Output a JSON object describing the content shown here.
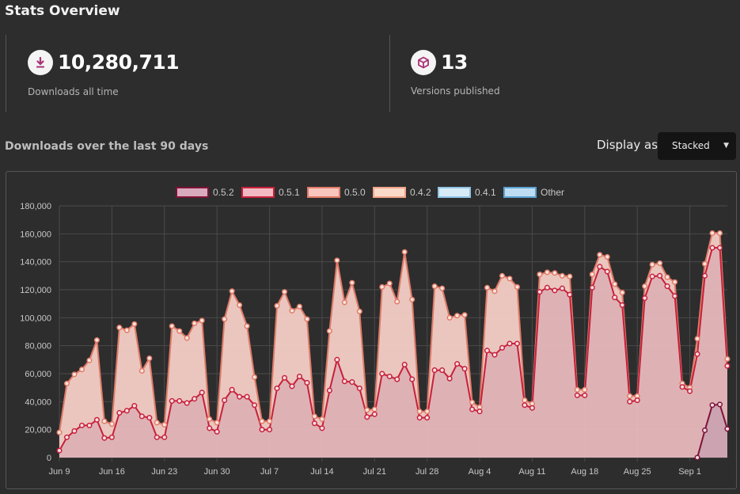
{
  "page": {
    "title": "Stats Overview"
  },
  "stats": [
    {
      "icon": "download-icon",
      "value": "10,280,711",
      "label": "Downloads all time"
    },
    {
      "icon": "package-icon",
      "value": "13",
      "label": "Versions published"
    }
  ],
  "section": {
    "title": "Downloads over the last 90 days",
    "display_label": "Display as",
    "display_value": "Stacked"
  },
  "colors": {
    "accent": "#a83276",
    "fill_050": "#f4cfc6",
    "line_050": "#e07a68",
    "fill_051": "#e8b9bd",
    "line_051": "#c7203b",
    "fill_052": "#d4aab8",
    "line_052": "#7e1237"
  },
  "chart_data": {
    "type": "area",
    "stacked": true,
    "ylim": [
      0,
      180000
    ],
    "yticks": [
      "0",
      "20,000",
      "40,000",
      "60,000",
      "80,000",
      "100,000",
      "120,000",
      "140,000",
      "160,000",
      "180,000"
    ],
    "xtick_labels": [
      "Jun 9",
      "Jun 16",
      "Jun 23",
      "Jun 30",
      "Jul 7",
      "Jul 14",
      "Jul 21",
      "Jul 28",
      "Aug 4",
      "Aug 11",
      "Aug 18",
      "Aug 25",
      "Sep 1"
    ],
    "xtick_index": [
      0,
      7,
      14,
      21,
      28,
      35,
      42,
      49,
      56,
      63,
      70,
      77,
      84
    ],
    "legend_position": "top",
    "legend": [
      "0.5.2",
      "0.5.1",
      "0.5.0",
      "0.4.2",
      "0.4.1",
      "Other"
    ],
    "legend_colors": [
      {
        "fill": "#d9a9bc",
        "stroke": "#7e1237"
      },
      {
        "fill": "#f2b9c2",
        "stroke": "#c7203b"
      },
      {
        "fill": "#f8c6bd",
        "stroke": "#e07a68"
      },
      {
        "fill": "#fbd9c8",
        "stroke": "#f0a489"
      },
      {
        "fill": "#d8ecf8",
        "stroke": "#8fc3e3"
      },
      {
        "fill": "#bddcf2",
        "stroke": "#5aa0cf"
      }
    ],
    "series": [
      {
        "name": "0.5.2",
        "values": [
          0,
          0,
          0,
          0,
          0,
          0,
          0,
          0,
          0,
          0,
          0,
          0,
          0,
          0,
          0,
          0,
          0,
          0,
          0,
          0,
          0,
          0,
          0,
          0,
          0,
          0,
          0,
          0,
          0,
          0,
          0,
          0,
          0,
          0,
          0,
          0,
          0,
          0,
          0,
          0,
          0,
          0,
          0,
          0,
          0,
          0,
          0,
          0,
          0,
          0,
          0,
          0,
          0,
          0,
          0,
          0,
          0,
          0,
          0,
          0,
          0,
          0,
          0,
          0,
          0,
          0,
          0,
          0,
          0,
          0,
          0,
          0,
          0,
          0,
          0,
          0,
          0,
          0,
          0,
          0,
          0,
          0,
          0,
          0,
          0,
          0,
          19500,
          37500,
          38000,
          20500
        ]
      },
      {
        "name": "0.5.1",
        "values": [
          5000,
          14500,
          19000,
          23000,
          23000,
          27000,
          14000,
          14500,
          32000,
          33500,
          37000,
          29500,
          28500,
          14500,
          14500,
          40500,
          40500,
          39000,
          42000,
          46500,
          21000,
          18500,
          41000,
          48500,
          43500,
          43500,
          37500,
          20000,
          20000,
          49500,
          57000,
          51000,
          58000,
          53500,
          24500,
          21000,
          48000,
          70000,
          54500,
          54000,
          49500,
          29000,
          31000,
          60000,
          58000,
          56000,
          66500,
          56000,
          28500,
          28500,
          62500,
          62500,
          56500,
          67000,
          63500,
          34500,
          33000,
          76500,
          73500,
          78500,
          81500,
          81500,
          37500,
          35500,
          118500,
          121500,
          119500,
          121000,
          116500,
          44500,
          44500,
          121500,
          136500,
          133000,
          114500,
          109000,
          40000,
          41000,
          114000,
          129500,
          130000,
          122500,
          115500,
          50500,
          47500,
          74000,
          110500,
          112500,
          112000,
          45000
        ]
      },
      {
        "name": "0.5.0",
        "values": [
          13000,
          38500,
          40500,
          40000,
          46500,
          57000,
          12000,
          9500,
          61000,
          57500,
          58500,
          32500,
          42500,
          10500,
          9000,
          53500,
          50000,
          46500,
          54000,
          51500,
          6500,
          6500,
          58000,
          70500,
          65500,
          50500,
          20000,
          6000,
          6000,
          59000,
          61500,
          54000,
          50000,
          45500,
          5000,
          6500,
          42500,
          71000,
          56500,
          71000,
          55000,
          5000,
          3500,
          62000,
          66500,
          55500,
          80500,
          57000,
          4500,
          4500,
          60000,
          58500,
          43500,
          34500,
          38500,
          5000,
          3000,
          45000,
          45500,
          51500,
          46500,
          40500,
          3500,
          3000,
          12500,
          11000,
          12500,
          9000,
          13000,
          4000,
          4000,
          9500,
          8500,
          10500,
          9500,
          9000,
          4000,
          3000,
          8500,
          8500,
          9000,
          6500,
          10000,
          2500,
          2500,
          11000,
          8500,
          10500,
          10500,
          5000
        ]
      }
    ]
  }
}
